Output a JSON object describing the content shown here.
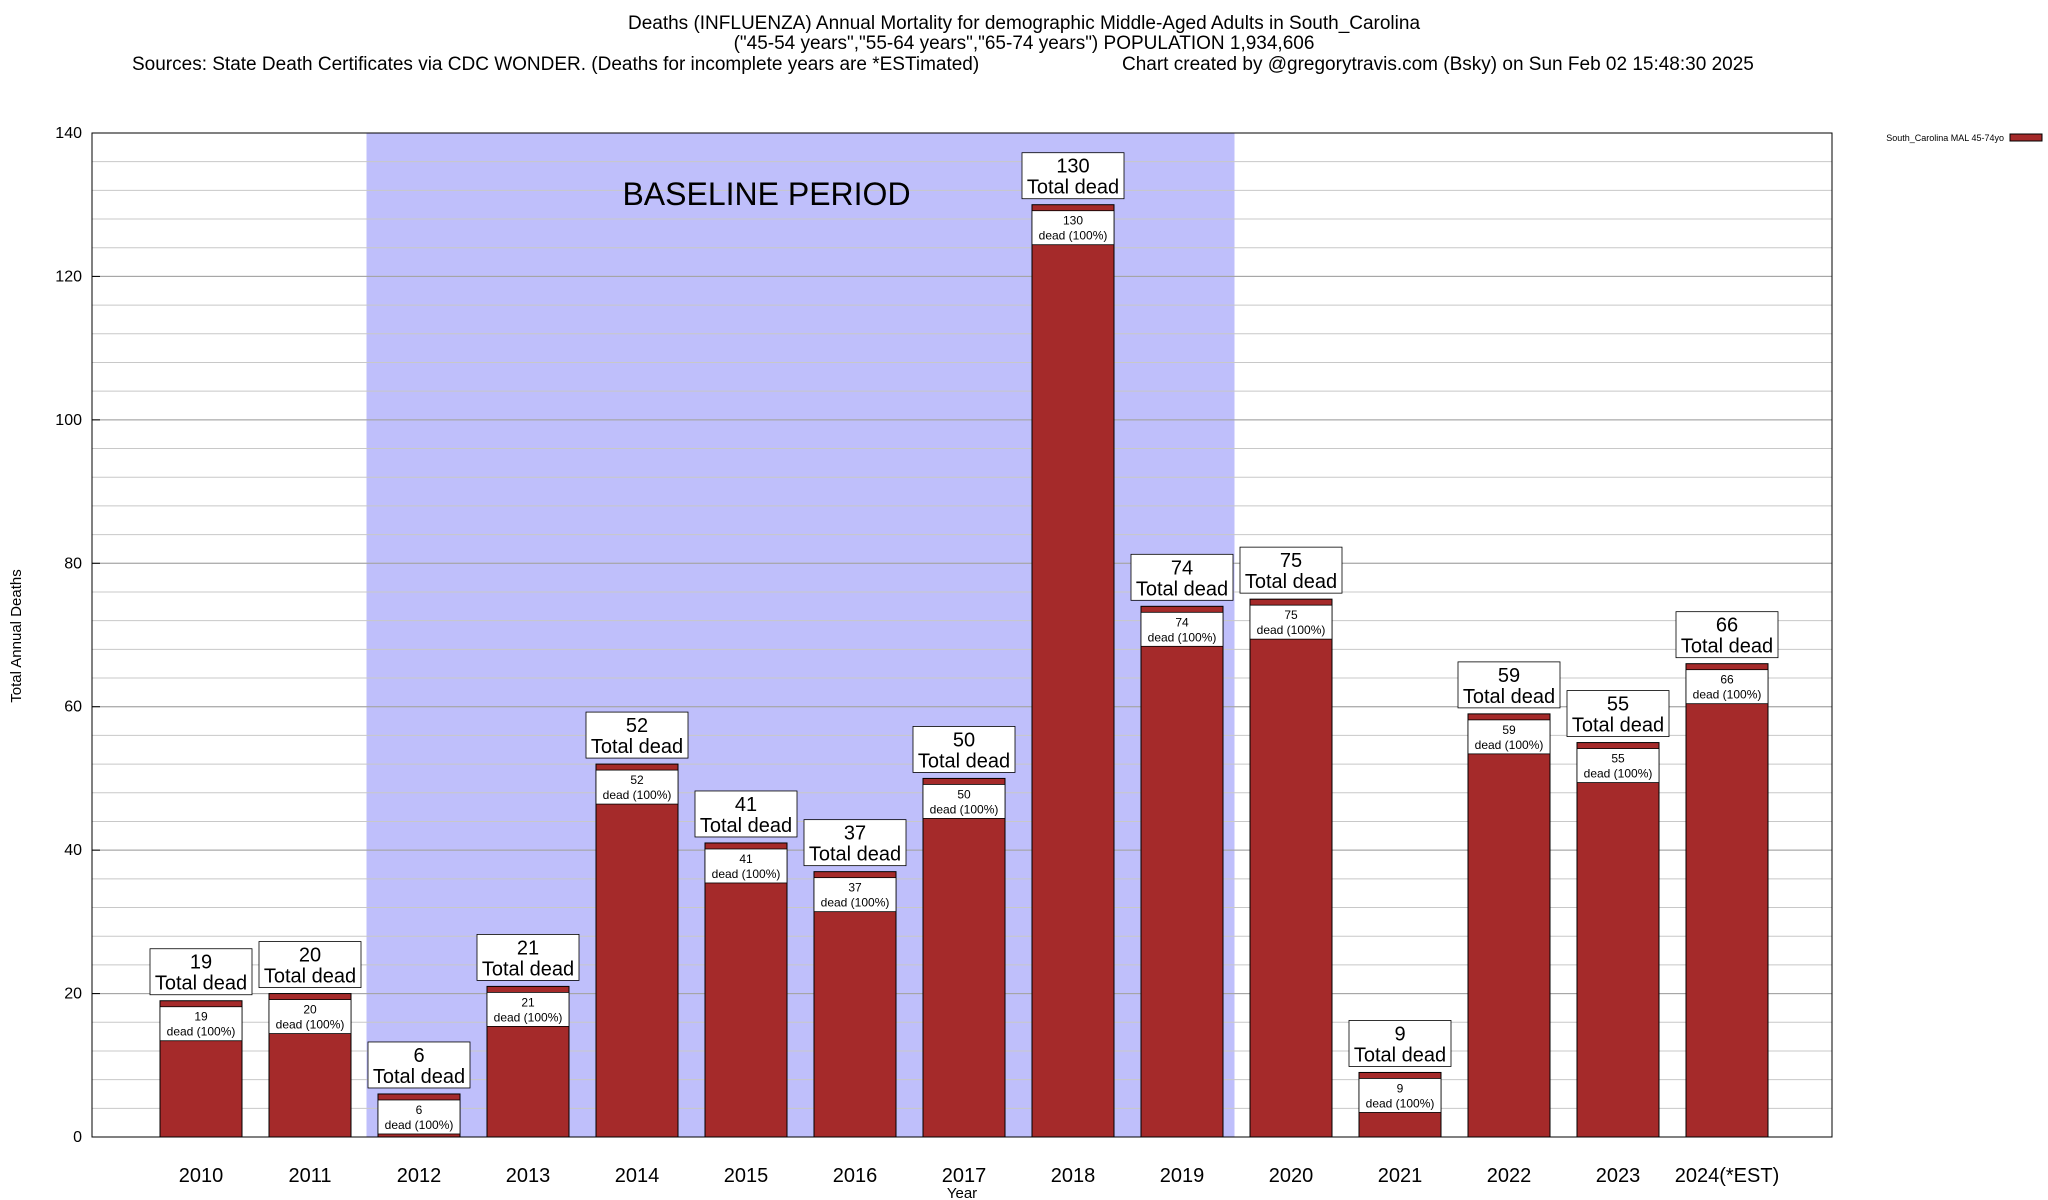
{
  "chart_data": {
    "type": "bar",
    "title_line1": "Deaths (INFLUENZA) Annual Mortality for demographic Middle-Aged Adults in South_Carolina",
    "title_line2": "(\"45-54 years\",\"55-64 years\",\"65-74 years\") POPULATION 1,934,606",
    "sources": "Sources: State Death Certificates via CDC WONDER. (Deaths for incomplete years are *ESTimated)",
    "credit": "Chart created by @gregorytravis.com (Bsky) on Sun Feb 02 15:48:30 2025",
    "xlabel": "Year",
    "ylabel": "Total Annual Deaths",
    "ylim": [
      0,
      140
    ],
    "yticks": [
      0,
      20,
      40,
      60,
      80,
      100,
      120,
      140
    ],
    "grid": "horizontal",
    "legend_placement": "top-right",
    "categories": [
      "2010",
      "2011",
      "2012",
      "2013",
      "2014",
      "2015",
      "2016",
      "2017",
      "2018",
      "2019",
      "2020",
      "2021",
      "2022",
      "2023",
      "2024(*EST)"
    ],
    "series": [
      {
        "name": "South_Carolina MAL 45-74yo",
        "values": [
          19,
          20,
          6,
          21,
          52,
          41,
          37,
          50,
          130,
          74,
          75,
          9,
          59,
          55,
          66
        ],
        "color": "#a52a2a"
      }
    ],
    "top_label_suffix": "Total dead",
    "inner_label_suffix": "dead (100%)",
    "annotation": {
      "text": "BASELINE PERIOD",
      "start": "2012",
      "end": "2019",
      "color": "#bfbffb"
    }
  }
}
